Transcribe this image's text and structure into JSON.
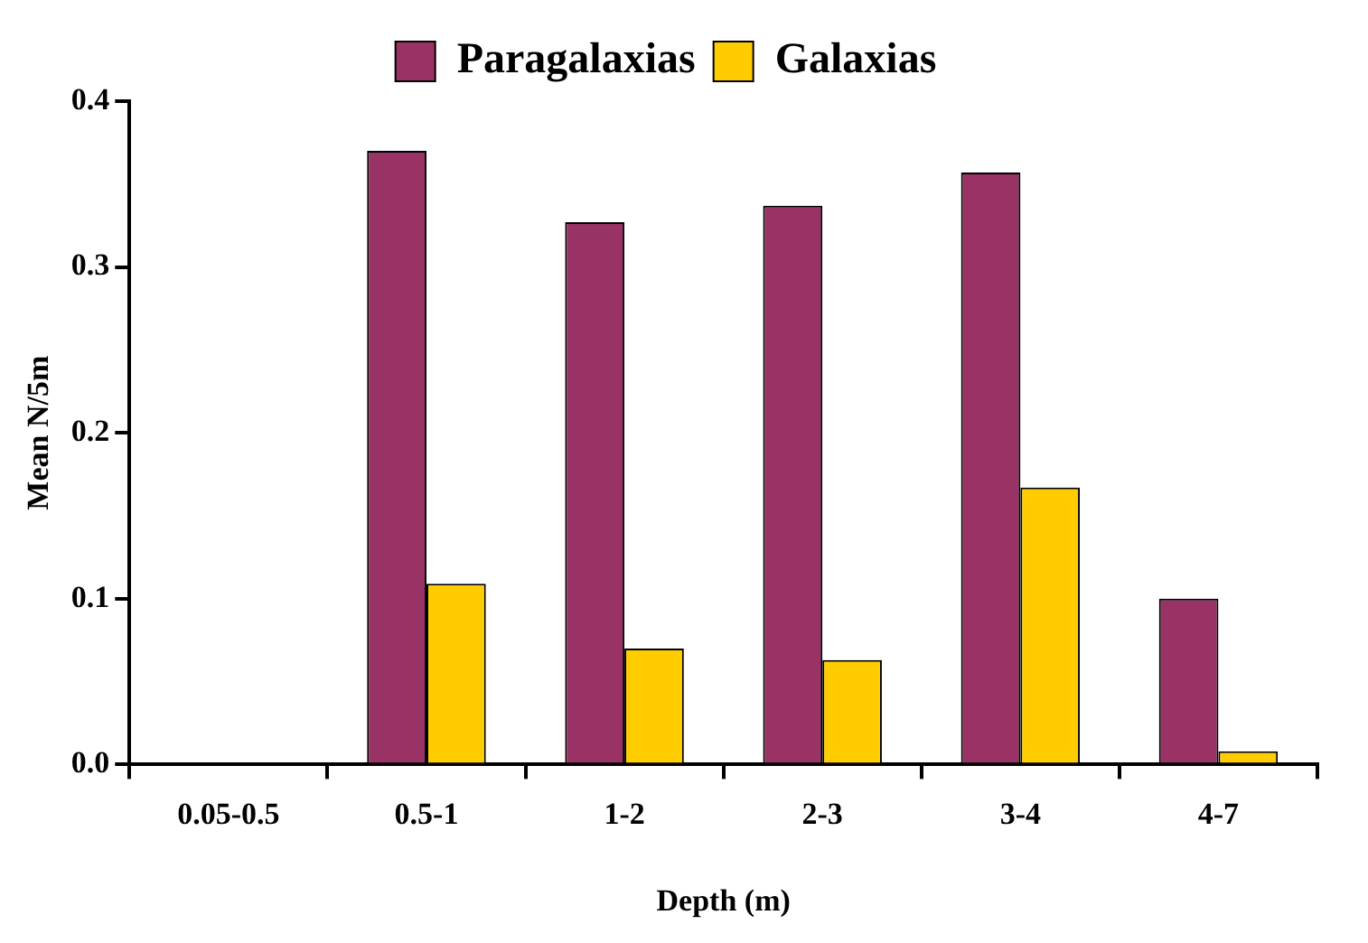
{
  "chart_data": {
    "type": "bar",
    "xlabel": "Depth (m)",
    "ylabel": "Mean N/5m",
    "categories": [
      "0.05-0.5",
      "0.5-1",
      "1-2",
      "2-3",
      "3-4",
      "4-7"
    ],
    "series": [
      {
        "name": "Paragalaxias",
        "color": "#993366",
        "values": [
          0,
          0.37,
          0.327,
          0.337,
          0.357,
          0.1
        ]
      },
      {
        "name": "Galaxias",
        "color": "#ffcc00",
        "values": [
          0,
          0.109,
          0.07,
          0.063,
          0.167,
          0.008
        ]
      }
    ],
    "ylim": [
      0,
      0.4
    ],
    "yticks": [
      {
        "value": 0,
        "label": "0.0"
      },
      {
        "value": 0.1,
        "label": "0.1"
      },
      {
        "value": 0.2,
        "label": "0.2"
      },
      {
        "value": 0.3,
        "label": "0.3"
      },
      {
        "value": 0.4,
        "label": "0.4"
      }
    ],
    "grid": false,
    "legend": "top"
  }
}
